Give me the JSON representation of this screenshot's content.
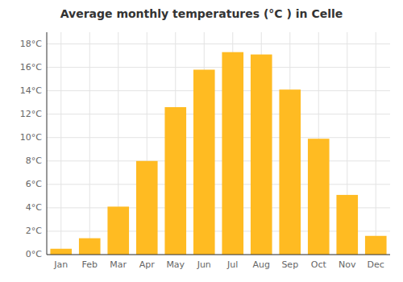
{
  "chart_data": {
    "type": "bar",
    "title": "Average monthly temperatures (°C ) in Celle",
    "categories": [
      "Jan",
      "Feb",
      "Mar",
      "Apr",
      "May",
      "Jun",
      "Jul",
      "Aug",
      "Sep",
      "Oct",
      "Nov",
      "Dec"
    ],
    "values": [
      0.5,
      1.4,
      4.1,
      8.0,
      12.6,
      15.8,
      17.3,
      17.1,
      14.1,
      9.9,
      5.1,
      1.6
    ],
    "color": "#FFBB22",
    "ylim": [
      0,
      19
    ],
    "yticks": [
      {
        "value": 0,
        "label": "0°C"
      },
      {
        "value": 2,
        "label": "2°C"
      },
      {
        "value": 4,
        "label": "4°C"
      },
      {
        "value": 6,
        "label": "6°C"
      },
      {
        "value": 8,
        "label": "8°C"
      },
      {
        "value": 10,
        "label": "10°C"
      },
      {
        "value": 12,
        "label": "12°C"
      },
      {
        "value": 14,
        "label": "14°C"
      },
      {
        "value": 16,
        "label": "16°C"
      },
      {
        "value": 18,
        "label": "18°C"
      }
    ],
    "grid": true
  }
}
